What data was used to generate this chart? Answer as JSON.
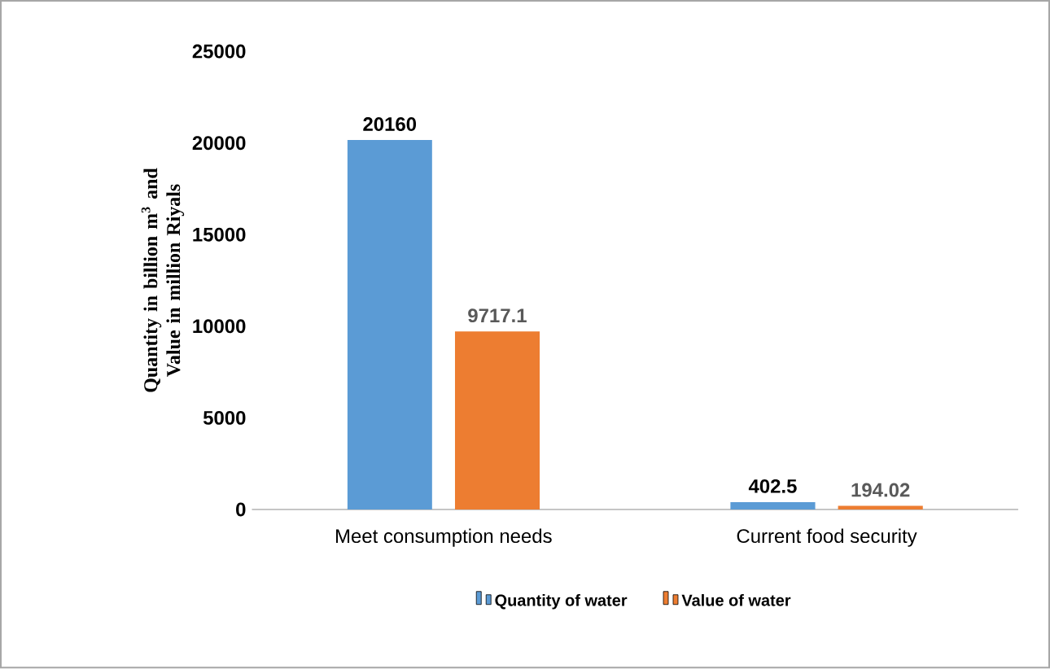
{
  "chart_data": {
    "type": "bar",
    "categories": [
      "Meet consumption needs",
      "Current food security"
    ],
    "series": [
      {
        "name": "Quantity of water",
        "color": "#5b9bd5",
        "values": [
          20160,
          402.5
        ],
        "value_labels": [
          "20160",
          "402.5"
        ]
      },
      {
        "name": "Value of water",
        "color": "#ed7d31",
        "values": [
          9717.1,
          194.02
        ],
        "value_labels": [
          "9717.1",
          "194.02"
        ]
      }
    ],
    "ylabel": "Quantity in billion m$^{3}$ and  Value in million Riyals",
    "ylim": [
      0,
      25000
    ],
    "yticks": [
      0,
      5000,
      10000,
      15000,
      20000,
      25000
    ],
    "legend": "bottom"
  }
}
